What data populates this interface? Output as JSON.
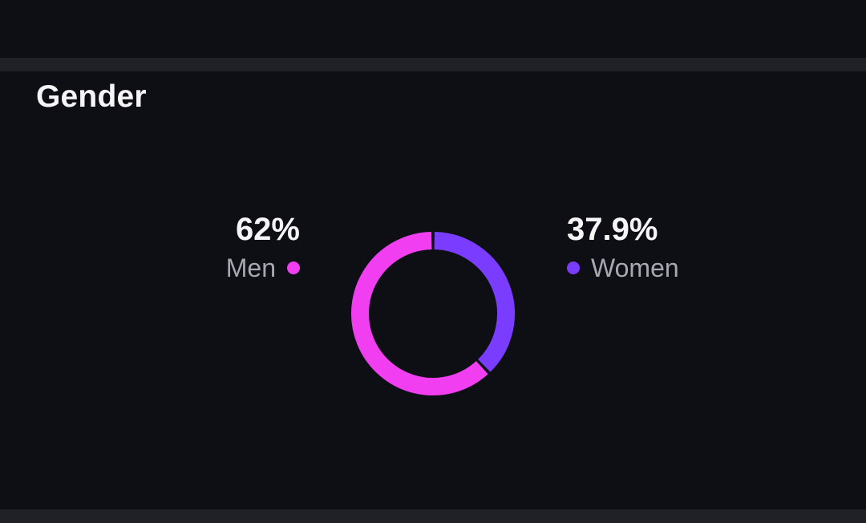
{
  "section": {
    "title": "Gender"
  },
  "chart_data": {
    "type": "pie",
    "variant": "donut",
    "title": "Gender",
    "slices": [
      {
        "name": "Men",
        "value": 62,
        "display": "62%",
        "color": "#f03ef0"
      },
      {
        "name": "Women",
        "value": 37.9,
        "display": "37.9%",
        "color": "#7a3cff"
      }
    ],
    "legend_placement": "left-and-right"
  },
  "colors": {
    "background": "#0d0f14",
    "divider": "#1f2127",
    "men": "#f03ef0",
    "women": "#7a3cff"
  }
}
